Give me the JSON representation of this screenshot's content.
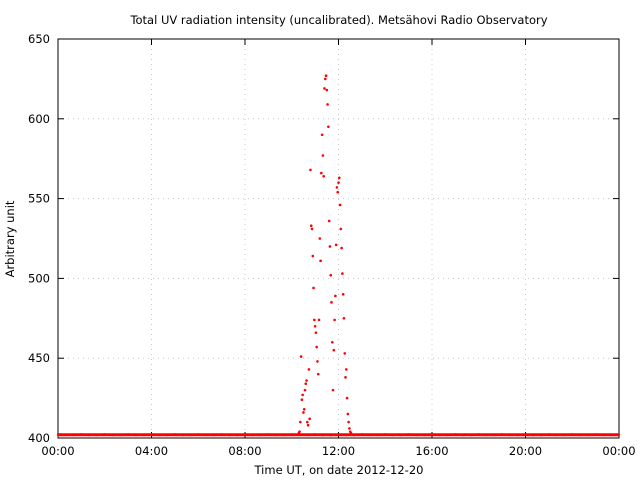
{
  "chart_data": {
    "type": "scatter",
    "title": "Total UV radiation intensity (uncalibrated). Metsähovi Radio Observatory",
    "xlabel": "Time UT, on date 2012-12-20",
    "ylabel": "Arbitrary unit",
    "xlim": [
      "00:00",
      "24:00"
    ],
    "ylim": [
      400,
      650
    ],
    "x_ticks": [
      "00:00",
      "04:00",
      "08:00",
      "12:00",
      "16:00",
      "20:00",
      "00:00"
    ],
    "y_ticks": [
      400,
      450,
      500,
      550,
      600,
      650
    ],
    "grid": true,
    "legend": "none",
    "point_color": "#ff0000",
    "baseline": {
      "from": "00:00",
      "to": "24:00",
      "value": 402
    },
    "series": [
      {
        "values": [
          [
            "10:15",
            402
          ],
          [
            "10:18",
            403
          ],
          [
            "10:20",
            404
          ],
          [
            "10:22",
            410
          ],
          [
            "10:24",
            451
          ],
          [
            "10:26",
            424
          ],
          [
            "10:28",
            427
          ],
          [
            "10:30",
            416
          ],
          [
            "10:32",
            418
          ],
          [
            "10:34",
            430
          ],
          [
            "10:36",
            434
          ],
          [
            "10:38",
            436
          ],
          [
            "10:40",
            410
          ],
          [
            "10:42",
            408
          ],
          [
            "10:44",
            443
          ],
          [
            "10:46",
            412
          ],
          [
            "10:48",
            568
          ],
          [
            "10:50",
            533
          ],
          [
            "10:52",
            531
          ],
          [
            "10:54",
            514
          ],
          [
            "10:56",
            494
          ],
          [
            "10:58",
            474
          ],
          [
            "11:00",
            470
          ],
          [
            "11:02",
            466
          ],
          [
            "11:04",
            457
          ],
          [
            "11:06",
            448
          ],
          [
            "11:08",
            440
          ],
          [
            "11:10",
            474
          ],
          [
            "11:12",
            525
          ],
          [
            "11:14",
            511
          ],
          [
            "11:16",
            566
          ],
          [
            "11:18",
            590
          ],
          [
            "11:20",
            577
          ],
          [
            "11:22",
            564
          ],
          [
            "11:24",
            619
          ],
          [
            "11:26",
            625
          ],
          [
            "11:28",
            627
          ],
          [
            "11:30",
            618
          ],
          [
            "11:32",
            609
          ],
          [
            "11:34",
            595
          ],
          [
            "11:36",
            536
          ],
          [
            "11:38",
            520
          ],
          [
            "11:40",
            502
          ],
          [
            "11:42",
            485
          ],
          [
            "11:44",
            460
          ],
          [
            "11:46",
            430
          ],
          [
            "11:48",
            455
          ],
          [
            "11:50",
            474
          ],
          [
            "11:52",
            489
          ],
          [
            "11:54",
            521
          ],
          [
            "11:56",
            557
          ],
          [
            "11:58",
            554
          ],
          [
            "12:00",
            560
          ],
          [
            "12:02",
            563
          ],
          [
            "12:04",
            546
          ],
          [
            "12:06",
            531
          ],
          [
            "12:08",
            519
          ],
          [
            "12:10",
            503
          ],
          [
            "12:12",
            490
          ],
          [
            "12:14",
            475
          ],
          [
            "12:16",
            453
          ],
          [
            "12:18",
            438
          ],
          [
            "12:20",
            443
          ],
          [
            "12:22",
            425
          ],
          [
            "12:24",
            415
          ],
          [
            "12:26",
            410
          ],
          [
            "12:28",
            406
          ],
          [
            "12:30",
            404
          ],
          [
            "12:32",
            403
          ],
          [
            "12:34",
            402
          ]
        ]
      }
    ]
  }
}
